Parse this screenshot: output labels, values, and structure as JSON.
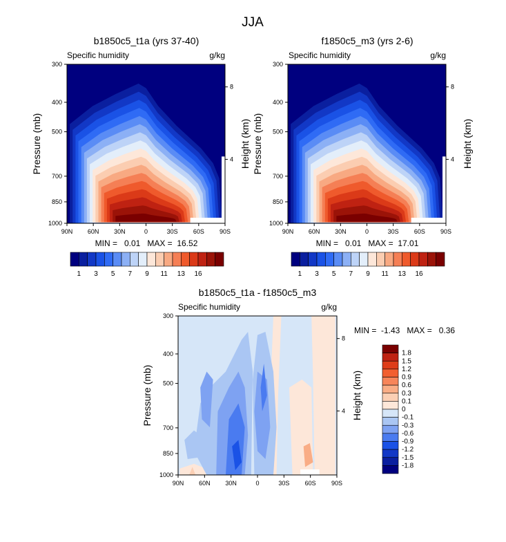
{
  "figure": {
    "title": "JJA",
    "palette_full": [
      "#00007f",
      "#0a1f9f",
      "#1238c6",
      "#1a52e6",
      "#2f6bf5",
      "#5a8cf5",
      "#8cb0f5",
      "#bdd3f7",
      "#e3eefa",
      "#fde7d9",
      "#fbcdb1",
      "#f8a982",
      "#f57f55",
      "#ef5a2c",
      "#db3a18",
      "#bf2212",
      "#9b1308",
      "#7a0000"
    ],
    "palette_diff": [
      "#00007f",
      "#0a1f9f",
      "#1238c6",
      "#1a52e6",
      "#4a7bf0",
      "#7ea2f2",
      "#aac6f3",
      "#d6e6f8",
      "#fde7d9",
      "#fbcfb4",
      "#f9ad86",
      "#f7855a",
      "#f25f30",
      "#de3d19",
      "#bf2212",
      "#7a0000"
    ]
  },
  "chart_data": [
    {
      "type": "heatmap",
      "panel_title": "b1850c5_t1a (yrs 37-40)",
      "left_label": "Specific humidity",
      "right_label": "g/kg",
      "ylabel": "Pressure (mb)",
      "ylabel_right": "Height (km)",
      "x_ticks": [
        "90N",
        "60N",
        "30N",
        "0",
        "30S",
        "60S",
        "90S"
      ],
      "y_ticks": [
        "300",
        "400",
        "500",
        "700",
        "850",
        "1000"
      ],
      "y_ticks_right": [
        "8",
        "4"
      ],
      "stats": "MIN =   0.01   MAX =  16.52",
      "colorbar_labels": [
        "1",
        "3",
        "5",
        "7",
        "9",
        "11",
        "13",
        "16"
      ],
      "colorbar_orientation": "horizontal",
      "levels": [
        1,
        2,
        3,
        4,
        5,
        6,
        7,
        8,
        9,
        10,
        11,
        12,
        13,
        14,
        15,
        16,
        17
      ],
      "min": 0.01,
      "max": 16.52
    },
    {
      "type": "heatmap",
      "panel_title": "f1850c5_m3 (yrs 2-6)",
      "left_label": "Specific humidity",
      "right_label": "g/kg",
      "ylabel": "Pressure (mb)",
      "ylabel_right": "Height (km)",
      "x_ticks": [
        "90N",
        "60N",
        "30N",
        "0",
        "30S",
        "60S",
        "90S"
      ],
      "y_ticks": [
        "300",
        "400",
        "500",
        "700",
        "850",
        "1000"
      ],
      "y_ticks_right": [
        "8",
        "4"
      ],
      "stats": "MIN =   0.01   MAX =  17.01",
      "colorbar_labels": [
        "1",
        "3",
        "5",
        "7",
        "9",
        "11",
        "13",
        "16"
      ],
      "colorbar_orientation": "horizontal",
      "levels": [
        1,
        2,
        3,
        4,
        5,
        6,
        7,
        8,
        9,
        10,
        11,
        12,
        13,
        14,
        15,
        16,
        17
      ],
      "min": 0.01,
      "max": 17.01
    },
    {
      "type": "heatmap",
      "panel_title": "b1850c5_t1a - f1850c5_m3",
      "left_label": "Specific humidity",
      "right_label": "g/kg",
      "ylabel": "Pressure (mb)",
      "ylabel_right": "Height (km)",
      "x_ticks": [
        "90N",
        "60N",
        "30N",
        "0",
        "30S",
        "60S",
        "90S"
      ],
      "y_ticks": [
        "300",
        "400",
        "500",
        "700",
        "850",
        "1000"
      ],
      "y_ticks_right": [
        "8",
        "4"
      ],
      "stats": "MIN =  -1.43   MAX =   0.36",
      "colorbar_labels": [
        "1.8",
        "1.5",
        "1.2",
        "0.9",
        "0.6",
        "0.3",
        "0.1",
        "0",
        "-0.1",
        "-0.3",
        "-0.6",
        "-0.9",
        "-1.2",
        "-1.5",
        "-1.8"
      ],
      "colorbar_orientation": "vertical",
      "min": -1.43,
      "max": 0.36
    }
  ]
}
